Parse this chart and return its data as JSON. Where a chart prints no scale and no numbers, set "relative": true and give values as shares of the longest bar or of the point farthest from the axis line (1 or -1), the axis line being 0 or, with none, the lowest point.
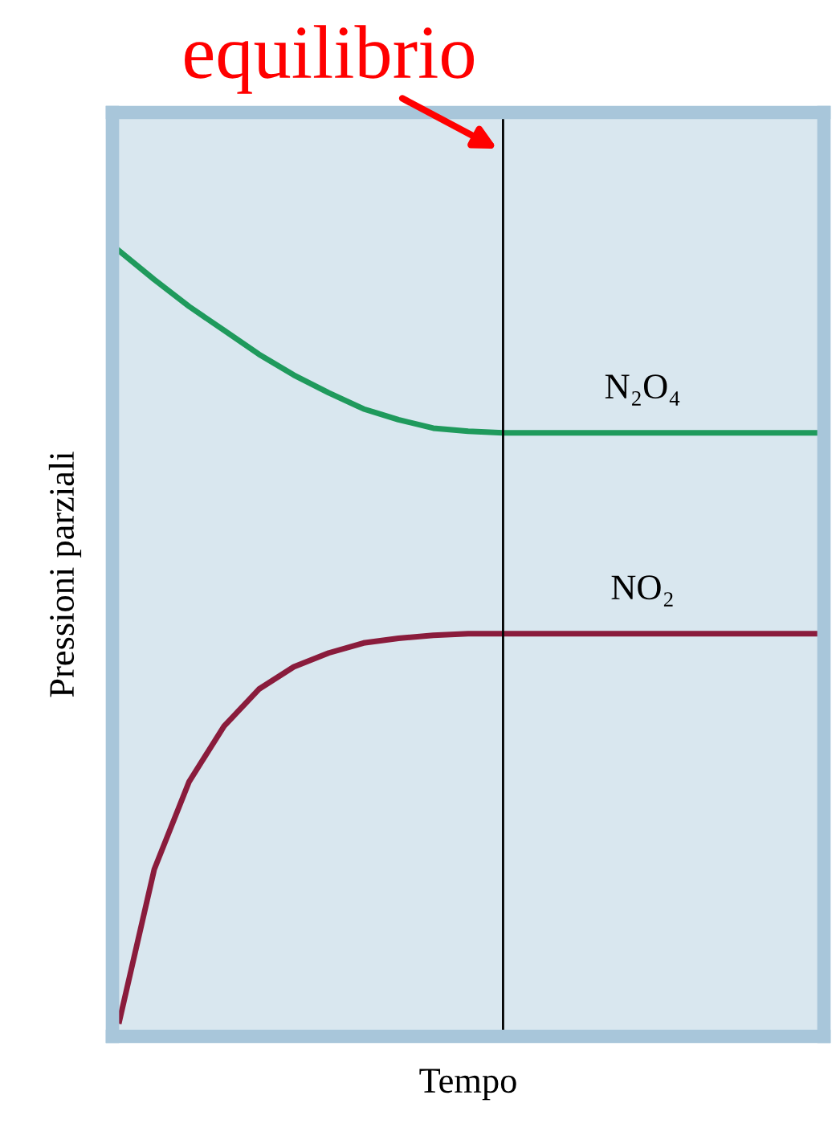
{
  "chart_data": {
    "type": "line",
    "relative": true,
    "xlabel": "Tempo",
    "ylabel": "Pressioni parziali",
    "categories": [
      null,
      null,
      null,
      null,
      null,
      null,
      null,
      null,
      null,
      null,
      null,
      null,
      null,
      null,
      null,
      null,
      null,
      null,
      null,
      null,
      null
    ],
    "series": [
      {
        "name": "N₂O₄",
        "color": "#1f9a5c",
        "values": [
          1,
          0.963,
          0.928,
          0.897,
          0.866,
          0.839,
          0.816,
          0.795,
          0.781,
          0.77,
          0.766,
          0.764,
          0.764,
          0.764,
          0.764,
          0.764,
          0.764,
          0.764,
          0.764,
          0.764,
          0.764
        ]
      },
      {
        "name": "NO₂",
        "color": "#8a1c3c",
        "values": [
          0,
          0.197,
          0.311,
          0.383,
          0.431,
          0.46,
          0.478,
          0.491,
          0.497,
          0.501,
          0.503,
          0.503,
          0.503,
          0.503,
          0.503,
          0.503,
          0.503,
          0.503,
          0.503,
          0.503,
          0.503
        ]
      }
    ],
    "annotations": [
      "equilibrio"
    ],
    "legend": false,
    "marker": "none",
    "line_style": "solid"
  }
}
